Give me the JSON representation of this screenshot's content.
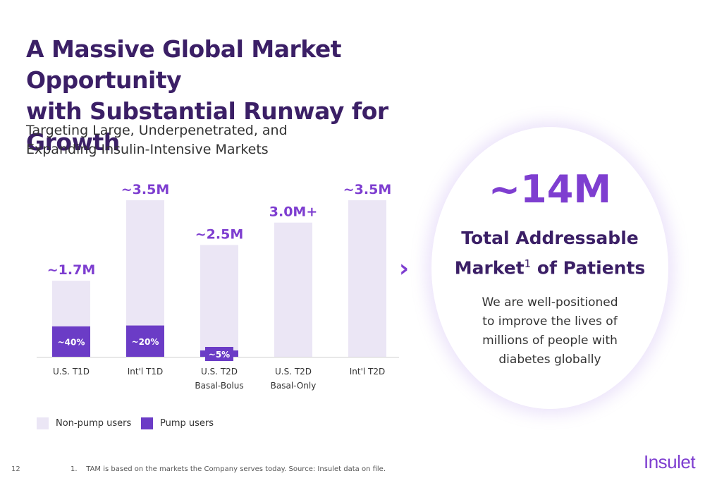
{
  "header": {
    "title_line1": "A Massive Global Market Opportunity",
    "title_line2": "with Substantial Runway for Growth",
    "subtitle_line1": "Targeting Large, Underpenetrated, and",
    "subtitle_line2": "Expanding Insulin-Intensive Markets"
  },
  "chart_data": {
    "type": "bar",
    "stacked": true,
    "categories": [
      [
        "U.S. T1D"
      ],
      [
        "Int'l T1D"
      ],
      [
        "U.S. T2D",
        "Basal-Bolus"
      ],
      [
        "U.S. T2D",
        "Basal-Only"
      ],
      [
        "Int'l T2D"
      ]
    ],
    "totals": [
      1.7,
      3.5,
      2.5,
      3.0,
      3.5
    ],
    "total_labels": [
      "~1.7M",
      "~3.5M",
      "~2.5M",
      "3.0M+",
      "~3.5M"
    ],
    "pump_share": [
      0.4,
      0.2,
      0.05,
      null,
      null
    ],
    "pump_labels": [
      "~40%",
      "~20%",
      "~5%",
      "",
      ""
    ],
    "series": [
      {
        "name": "Non-pump users",
        "color": "#ebe6f5"
      },
      {
        "name": "Pump users",
        "color": "#6b3cc6"
      }
    ],
    "ylim": [
      0,
      3.5
    ],
    "grid": false,
    "legend_position": "bottom-left"
  },
  "legend": {
    "non_pump": "Non-pump users",
    "pump": "Pump users"
  },
  "callout": {
    "arrow_glyph": "›",
    "big_number": "~14M",
    "tam_line1": "Total Addressable",
    "tam_line2_a": "Market",
    "tam_sup": "1",
    "tam_line2_b": " of Patients",
    "desc_line1": "We are well-positioned",
    "desc_line2": "to improve the lives of",
    "desc_line3": "millions of people with",
    "desc_line4": "diabetes globally"
  },
  "footer": {
    "page_number": "12",
    "footnote": "1.    TAM is based on the markets the Company serves today. Source: Insulet data on file.",
    "logo": "Insulet"
  },
  "colors": {
    "accent": "#7e3ed0",
    "title": "#3b1f66",
    "non_pump": "#ebe6f5",
    "pump": "#6b3cc6"
  }
}
